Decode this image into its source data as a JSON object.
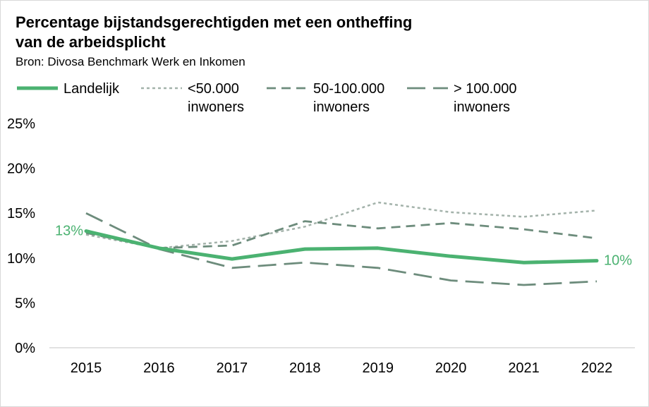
{
  "title": "Percentage bijstandsgerechtigden met een ontheffing van de arbeidsplicht",
  "title_lines": [
    "Percentage bijstandsgerechtigden met een ontheffing",
    "van de arbeidsplicht"
  ],
  "subtitle": "Bron: Divosa Benchmark Werk en Inkomen",
  "chart_data": {
    "type": "line",
    "title": "Percentage bijstandsgerechtigden met een ontheffing van de arbeidsplicht",
    "subtitle": "Bron: Divosa Benchmark Werk en Inkomen",
    "x": [
      "2015",
      "2016",
      "2017",
      "2018",
      "2019",
      "2020",
      "2021",
      "2022"
    ],
    "ylim": [
      0,
      25
    ],
    "yticks": [
      0,
      5,
      10,
      15,
      20,
      25
    ],
    "ytick_labels": [
      "0%",
      "5%",
      "10%",
      "15%",
      "20%",
      "25%"
    ],
    "grid": false,
    "legend_position": "top",
    "series": [
      {
        "name": "Landelijk",
        "legend_lines": [
          "Landelijk"
        ],
        "values": [
          13.0,
          11.1,
          9.9,
          11.0,
          11.1,
          10.2,
          9.5,
          9.7
        ],
        "color": "#4bb271",
        "style": "solid"
      },
      {
        "name": "<50.000 inwoners",
        "legend_lines": [
          "<50.000",
          "inwoners"
        ],
        "values": [
          12.6,
          11.1,
          11.9,
          13.5,
          16.2,
          15.1,
          14.6,
          15.3
        ],
        "color": "#a3b2aa",
        "style": "dotted"
      },
      {
        "name": "50-100.000 inwoners",
        "legend_lines": [
          "50-100.000",
          "inwoners"
        ],
        "values": [
          12.8,
          11.1,
          11.4,
          14.1,
          13.3,
          13.9,
          13.2,
          12.2
        ],
        "color": "#6d8c7c",
        "style": "dashed"
      },
      {
        "name": "> 100.000 inwoners",
        "legend_lines": [
          "> 100.000",
          "inwoners"
        ],
        "values": [
          15.0,
          11.0,
          8.9,
          9.5,
          8.9,
          7.5,
          7.0,
          7.4
        ],
        "color": "#6d8c7c",
        "style": "longdash"
      }
    ],
    "annotations": [
      {
        "series": "Landelijk",
        "x": "2015",
        "text": "13%"
      },
      {
        "series": "Landelijk",
        "x": "2022",
        "text": "10%"
      }
    ]
  }
}
